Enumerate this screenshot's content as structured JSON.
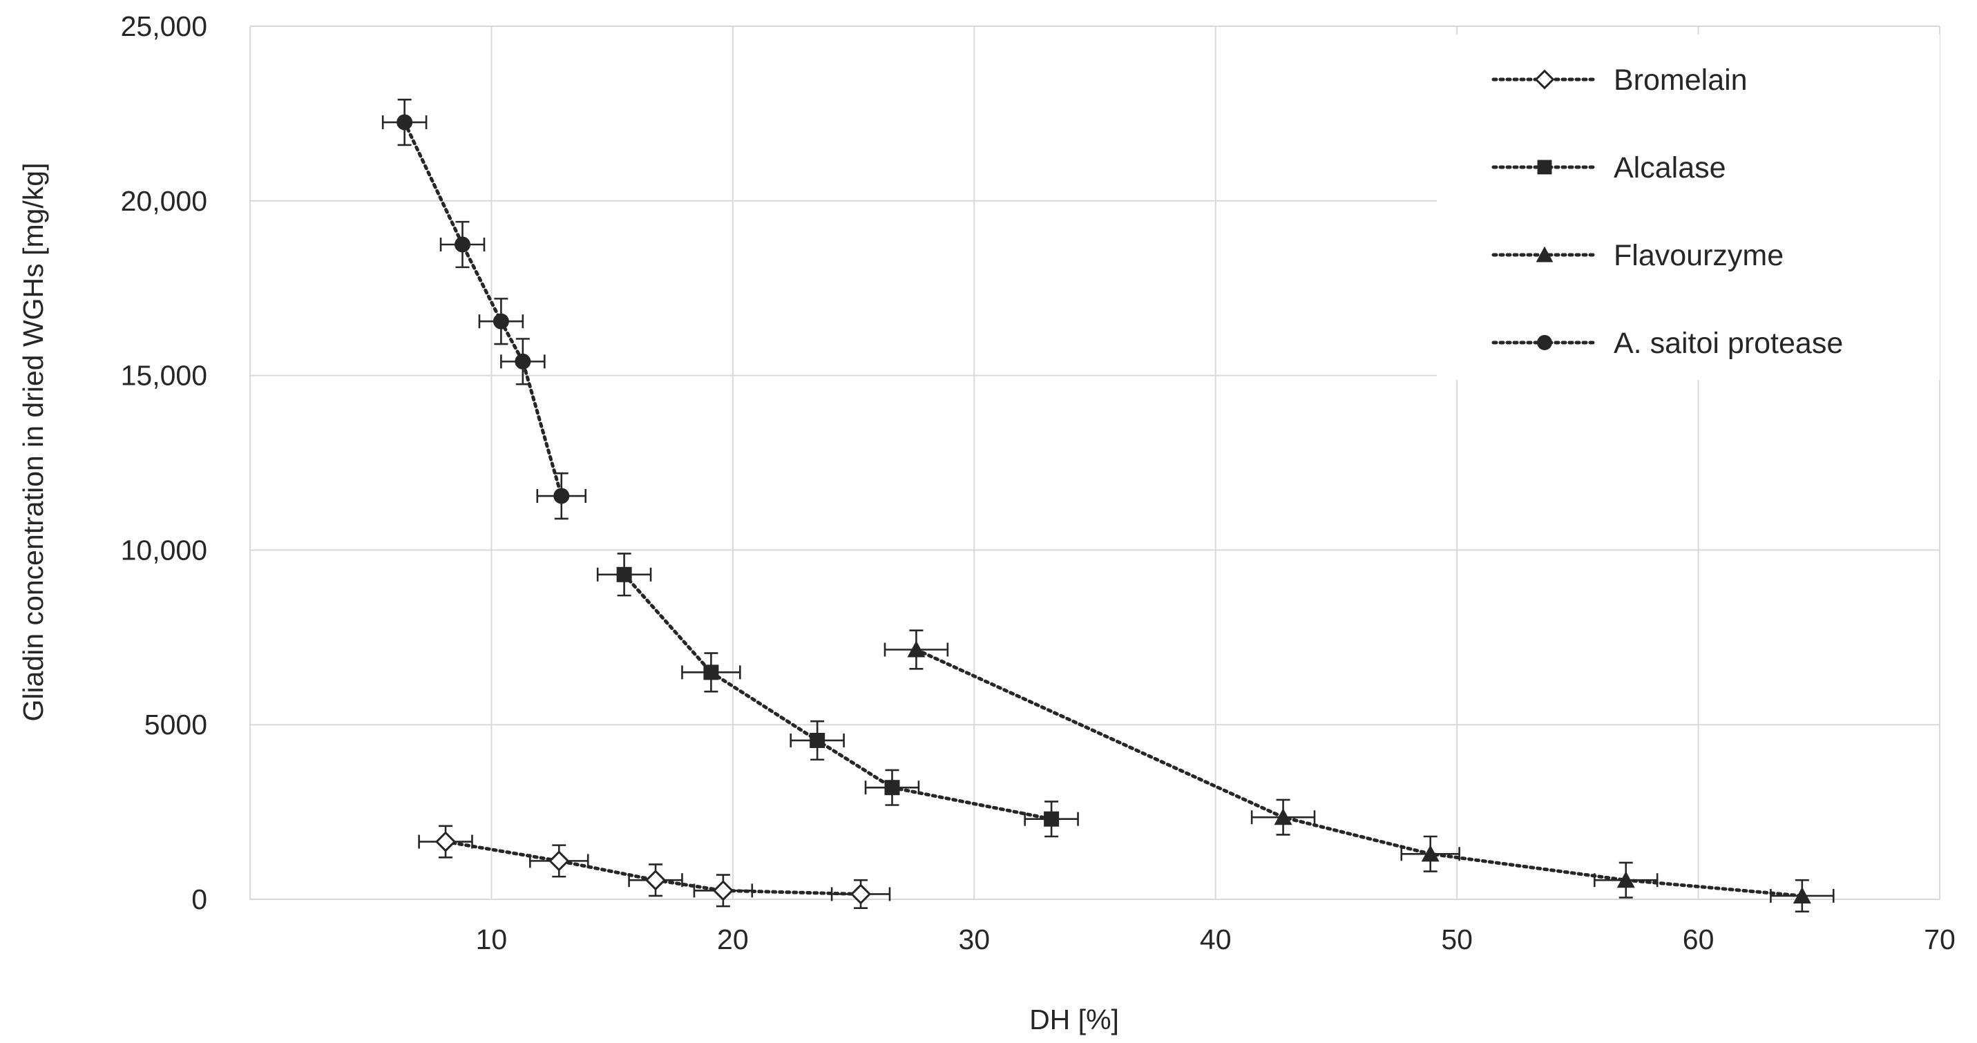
{
  "chart_data": {
    "type": "scatter",
    "title": "",
    "xlabel": "DH [%]",
    "ylabel": "Gliadin concentration in dried WGHs [mg/kg]",
    "xlim": [
      0,
      70
    ],
    "ylim": [
      0,
      25000
    ],
    "x_ticks": [
      10,
      20,
      30,
      40,
      50,
      60,
      70
    ],
    "x_tick_labels": [
      "10",
      "20",
      "30",
      "40",
      "50",
      "60",
      "70"
    ],
    "y_ticks": [
      0,
      5000,
      10000,
      15000,
      20000,
      25000
    ],
    "y_tick_labels": [
      "0",
      "5000",
      "10,000",
      "15,000",
      "20,000",
      "25,000"
    ],
    "grid": true,
    "legend_position": "top-right",
    "series": [
      {
        "name": "Bromelain",
        "marker": "diamond-open",
        "x": [
          8.1,
          12.8,
          16.8,
          19.6,
          25.3
        ],
        "y": [
          1650,
          1100,
          550,
          250,
          150
        ],
        "x_err": [
          1.1,
          1.2,
          1.1,
          1.2,
          1.2
        ],
        "y_err": [
          450,
          450,
          450,
          450,
          400
        ]
      },
      {
        "name": "Alcalase",
        "marker": "square",
        "x": [
          15.5,
          19.1,
          23.5,
          26.6,
          33.2
        ],
        "y": [
          9300,
          6500,
          4550,
          3200,
          2300
        ],
        "x_err": [
          1.1,
          1.2,
          1.1,
          1.1,
          1.1
        ],
        "y_err": [
          600,
          550,
          550,
          500,
          500
        ]
      },
      {
        "name": "Flavourzyme",
        "marker": "triangle",
        "x": [
          27.6,
          42.8,
          48.9,
          57.0,
          64.3
        ],
        "y": [
          7150,
          2350,
          1300,
          550,
          100
        ],
        "x_err": [
          1.3,
          1.3,
          1.2,
          1.3,
          1.3
        ],
        "y_err": [
          550,
          500,
          500,
          500,
          450
        ]
      },
      {
        "name": "A. saitoi protease",
        "marker": "circle",
        "x": [
          6.4,
          8.8,
          10.4,
          11.3,
          12.9
        ],
        "y": [
          22250,
          18750,
          16550,
          15400,
          11550
        ],
        "x_err": [
          0.9,
          0.9,
          0.9,
          0.9,
          1.0
        ],
        "y_err": [
          650,
          650,
          650,
          650,
          650
        ]
      }
    ]
  },
  "colors": {
    "series": "#262626",
    "grid": "#d9d9d9",
    "background": "#ffffff"
  }
}
